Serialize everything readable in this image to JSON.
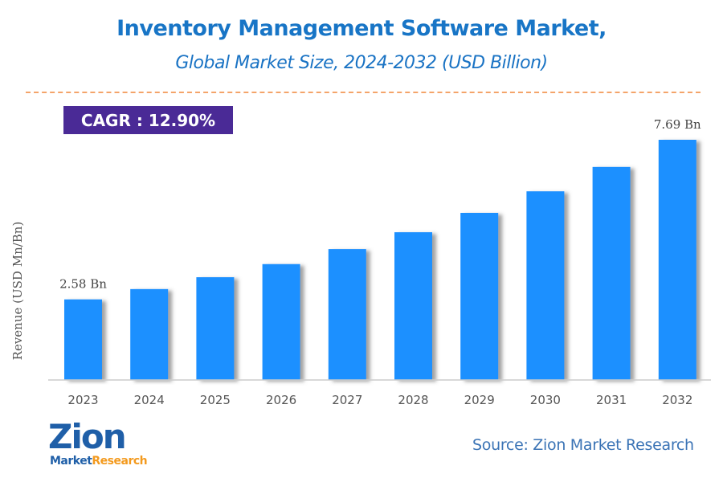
{
  "header": {
    "title": "Inventory Management Software Market,",
    "subtitle": "Global Market Size, 2024-2032 (USD Billion)"
  },
  "cagr_badge": "CAGR :  12.90%",
  "colors": {
    "bar": "#1e90ff",
    "title": "#1875c6",
    "cagr_bg": "#4a2a96",
    "divider": "#f4a46a",
    "axis_text": "#555555"
  },
  "chart_data": {
    "type": "bar",
    "title": "Inventory Management Software Market, Global Market Size, 2024-2032 (USD Billion)",
    "xlabel": "",
    "ylabel": "Revenue (USD Mn/Bn)",
    "categories": [
      "2023",
      "2024",
      "2025",
      "2026",
      "2027",
      "2028",
      "2029",
      "2030",
      "2031",
      "2032"
    ],
    "values": [
      2.58,
      2.91,
      3.29,
      3.71,
      4.19,
      4.73,
      5.35,
      6.04,
      6.82,
      7.69
    ],
    "data_labels": [
      {
        "index": 0,
        "text": "2.58 Bn"
      },
      {
        "index": 9,
        "text": "7.69 Bn"
      }
    ],
    "ylim": [
      0,
      7.69
    ],
    "grid": false,
    "legend": "none"
  },
  "footer": {
    "logo_main": "Zion",
    "logo_sub_1": "Market",
    "logo_sub_2": "Research",
    "source": "Source: Zion Market Research"
  }
}
